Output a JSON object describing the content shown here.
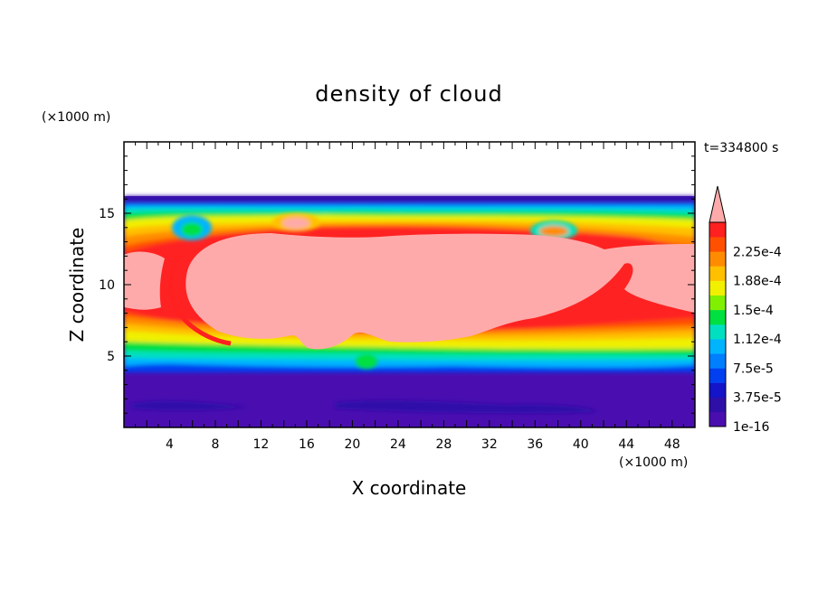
{
  "chart_data": {
    "type": "heatmap",
    "title": "density of cloud",
    "xlabel": "X coordinate",
    "ylabel": "Z coordinate",
    "x_unit": "(×1000 m)",
    "y_unit": "(×1000 m)",
    "time_label": "t=334800 s",
    "xlim": [
      0,
      50
    ],
    "ylim": [
      0,
      20
    ],
    "x_ticks": [
      4,
      8,
      12,
      16,
      20,
      24,
      28,
      32,
      36,
      40,
      44,
      48
    ],
    "y_ticks": [
      5,
      10,
      15
    ],
    "colorbar": {
      "levels": [
        {
          "value": "1e-16",
          "color": "#4a0eb0"
        },
        {
          "value": "",
          "color": "#2e10a8"
        },
        {
          "value": "3.75e-5",
          "color": "#1414c8"
        },
        {
          "value": "",
          "color": "#0040f0"
        },
        {
          "value": "7.5e-5",
          "color": "#0080ff"
        },
        {
          "value": "",
          "color": "#00b4ff"
        },
        {
          "value": "1.12e-4",
          "color": "#00e0c0"
        },
        {
          "value": "",
          "color": "#00e040"
        },
        {
          "value": "1.5e-4",
          "color": "#80f000"
        },
        {
          "value": "",
          "color": "#f0f000"
        },
        {
          "value": "1.88e-4",
          "color": "#ffc000"
        },
        {
          "value": "",
          "color": "#ff8c00"
        },
        {
          "value": "2.25e-4",
          "color": "#ff5000"
        },
        {
          "value": "",
          "color": "#ff2020"
        }
      ],
      "over_color": "#ffaaaa"
    }
  }
}
